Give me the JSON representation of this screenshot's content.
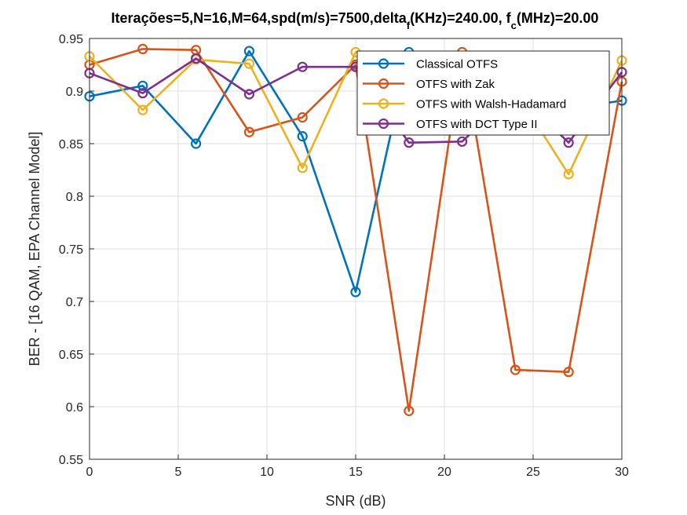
{
  "chart_data": {
    "type": "line",
    "title": {
      "main": "Iterações=5,N=16,M=64,spd(m/s)=7500,delta",
      "sub1": "f",
      "mid": "(KHz)=240.00, f",
      "sub2": "c",
      "end": "(MHz)=20.00"
    },
    "xlabel": "SNR (dB)",
    "ylabel": "BER - [16 QAM, EPA Channel Model]",
    "xlim": [
      0,
      30
    ],
    "ylim": [
      0.55,
      0.95
    ],
    "xticks": [
      "0",
      "5",
      "10",
      "15",
      "20",
      "25",
      "30"
    ],
    "yticks": [
      "0.55",
      "0.6",
      "0.65",
      "0.7",
      "0.75",
      "0.8",
      "0.85",
      "0.9",
      "0.95"
    ],
    "grid": true,
    "legend_position": "top-right",
    "x": [
      0,
      3,
      6,
      9,
      12,
      15,
      18,
      21,
      24,
      27,
      30
    ],
    "series": [
      {
        "name": "Classical OTFS",
        "color": "#0072BD",
        "values": [
          0.895,
          0.905,
          0.85,
          0.938,
          0.857,
          0.709,
          0.937,
          0.905,
          0.9,
          0.883,
          0.891
        ]
      },
      {
        "name": "OTFS with Zak",
        "color": "#D95319",
        "values": [
          0.925,
          0.94,
          0.939,
          0.861,
          0.875,
          0.925,
          0.596,
          0.937,
          0.635,
          0.633,
          0.909
        ]
      },
      {
        "name": "OTFS with Walsh-Hadamard",
        "color": "#EDB120",
        "values": [
          0.933,
          0.882,
          0.93,
          0.926,
          0.827,
          0.937,
          0.93,
          0.929,
          0.9,
          0.821,
          0.929
        ]
      },
      {
        "name": "OTFS with DCT Type II",
        "color": "#7E2F8E",
        "values": [
          0.917,
          0.898,
          0.931,
          0.897,
          0.923,
          0.923,
          0.851,
          0.852,
          0.9,
          0.851,
          0.918
        ]
      }
    ]
  }
}
